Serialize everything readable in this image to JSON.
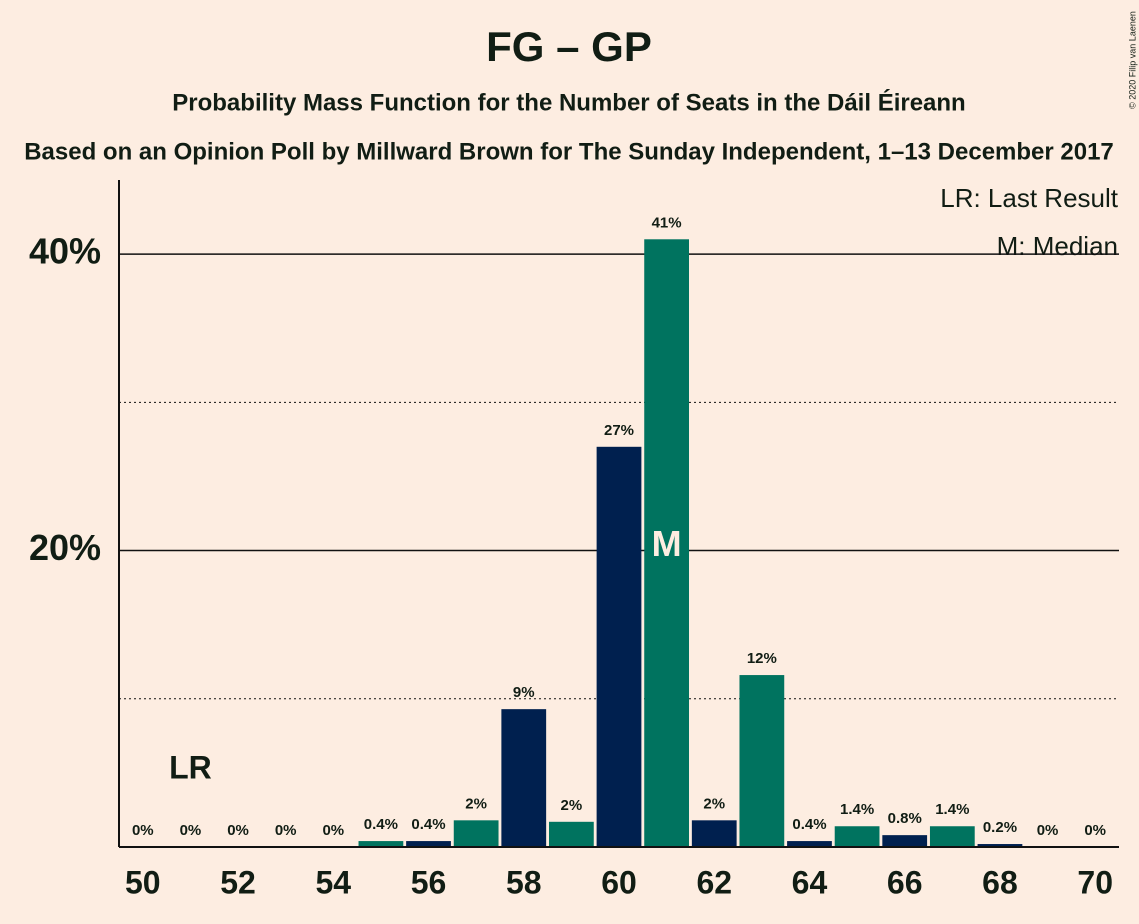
{
  "chart_data": {
    "type": "bar",
    "title": "FG – GP",
    "subtitle": "Probability Mass Function for the Number of Seats in the Dáil Éireann",
    "subtitle2": "Based on an Opinion Poll by Millward Brown for The Sunday Independent, 1–13 December 2017",
    "copyright": "© 2020 Filip van Laenen",
    "x": [
      50,
      51,
      52,
      53,
      54,
      55,
      56,
      57,
      58,
      59,
      60,
      61,
      62,
      63,
      64,
      65,
      66,
      67,
      68,
      69,
      70
    ],
    "values": [
      0,
      0,
      0,
      0,
      0,
      0.4,
      0.4,
      1.8,
      9.3,
      1.7,
      27,
      41,
      1.8,
      11.6,
      0.4,
      1.4,
      0.8,
      1.4,
      0.2,
      0,
      0
    ],
    "value_labels": [
      "0%",
      "0%",
      "0%",
      "0%",
      "0%",
      "0.4%",
      "0.4%",
      "2%",
      "9%",
      "2%",
      "27%",
      "41%",
      "2%",
      "12%",
      "0.4%",
      "1.4%",
      "0.8%",
      "1.4%",
      "0.2%",
      "0%",
      "0%"
    ],
    "colors": [
      "#00204f",
      "#00735f",
      "#00204f",
      "#00735f",
      "#00204f",
      "#00735f",
      "#00204f",
      "#00735f",
      "#00204f",
      "#00735f",
      "#00204f",
      "#00735f",
      "#00204f",
      "#00735f",
      "#00204f",
      "#00735f",
      "#00204f",
      "#00735f",
      "#00204f",
      "#00735f",
      "#00204f"
    ],
    "xlim": [
      49.5,
      70.5
    ],
    "xticks": [
      50,
      52,
      54,
      56,
      58,
      60,
      62,
      64,
      66,
      68,
      70
    ],
    "ylim": [
      0,
      45
    ],
    "yticks": [
      {
        "value": 20,
        "label": "20%"
      },
      {
        "value": 40,
        "label": "40%"
      }
    ],
    "minor_yticks": [
      10,
      30
    ],
    "grid": true,
    "last_result": {
      "x": 51,
      "label": "LR"
    },
    "median": {
      "x": 61,
      "label": "M"
    },
    "legend": [
      "LR: Last Result",
      "M: Median"
    ]
  }
}
